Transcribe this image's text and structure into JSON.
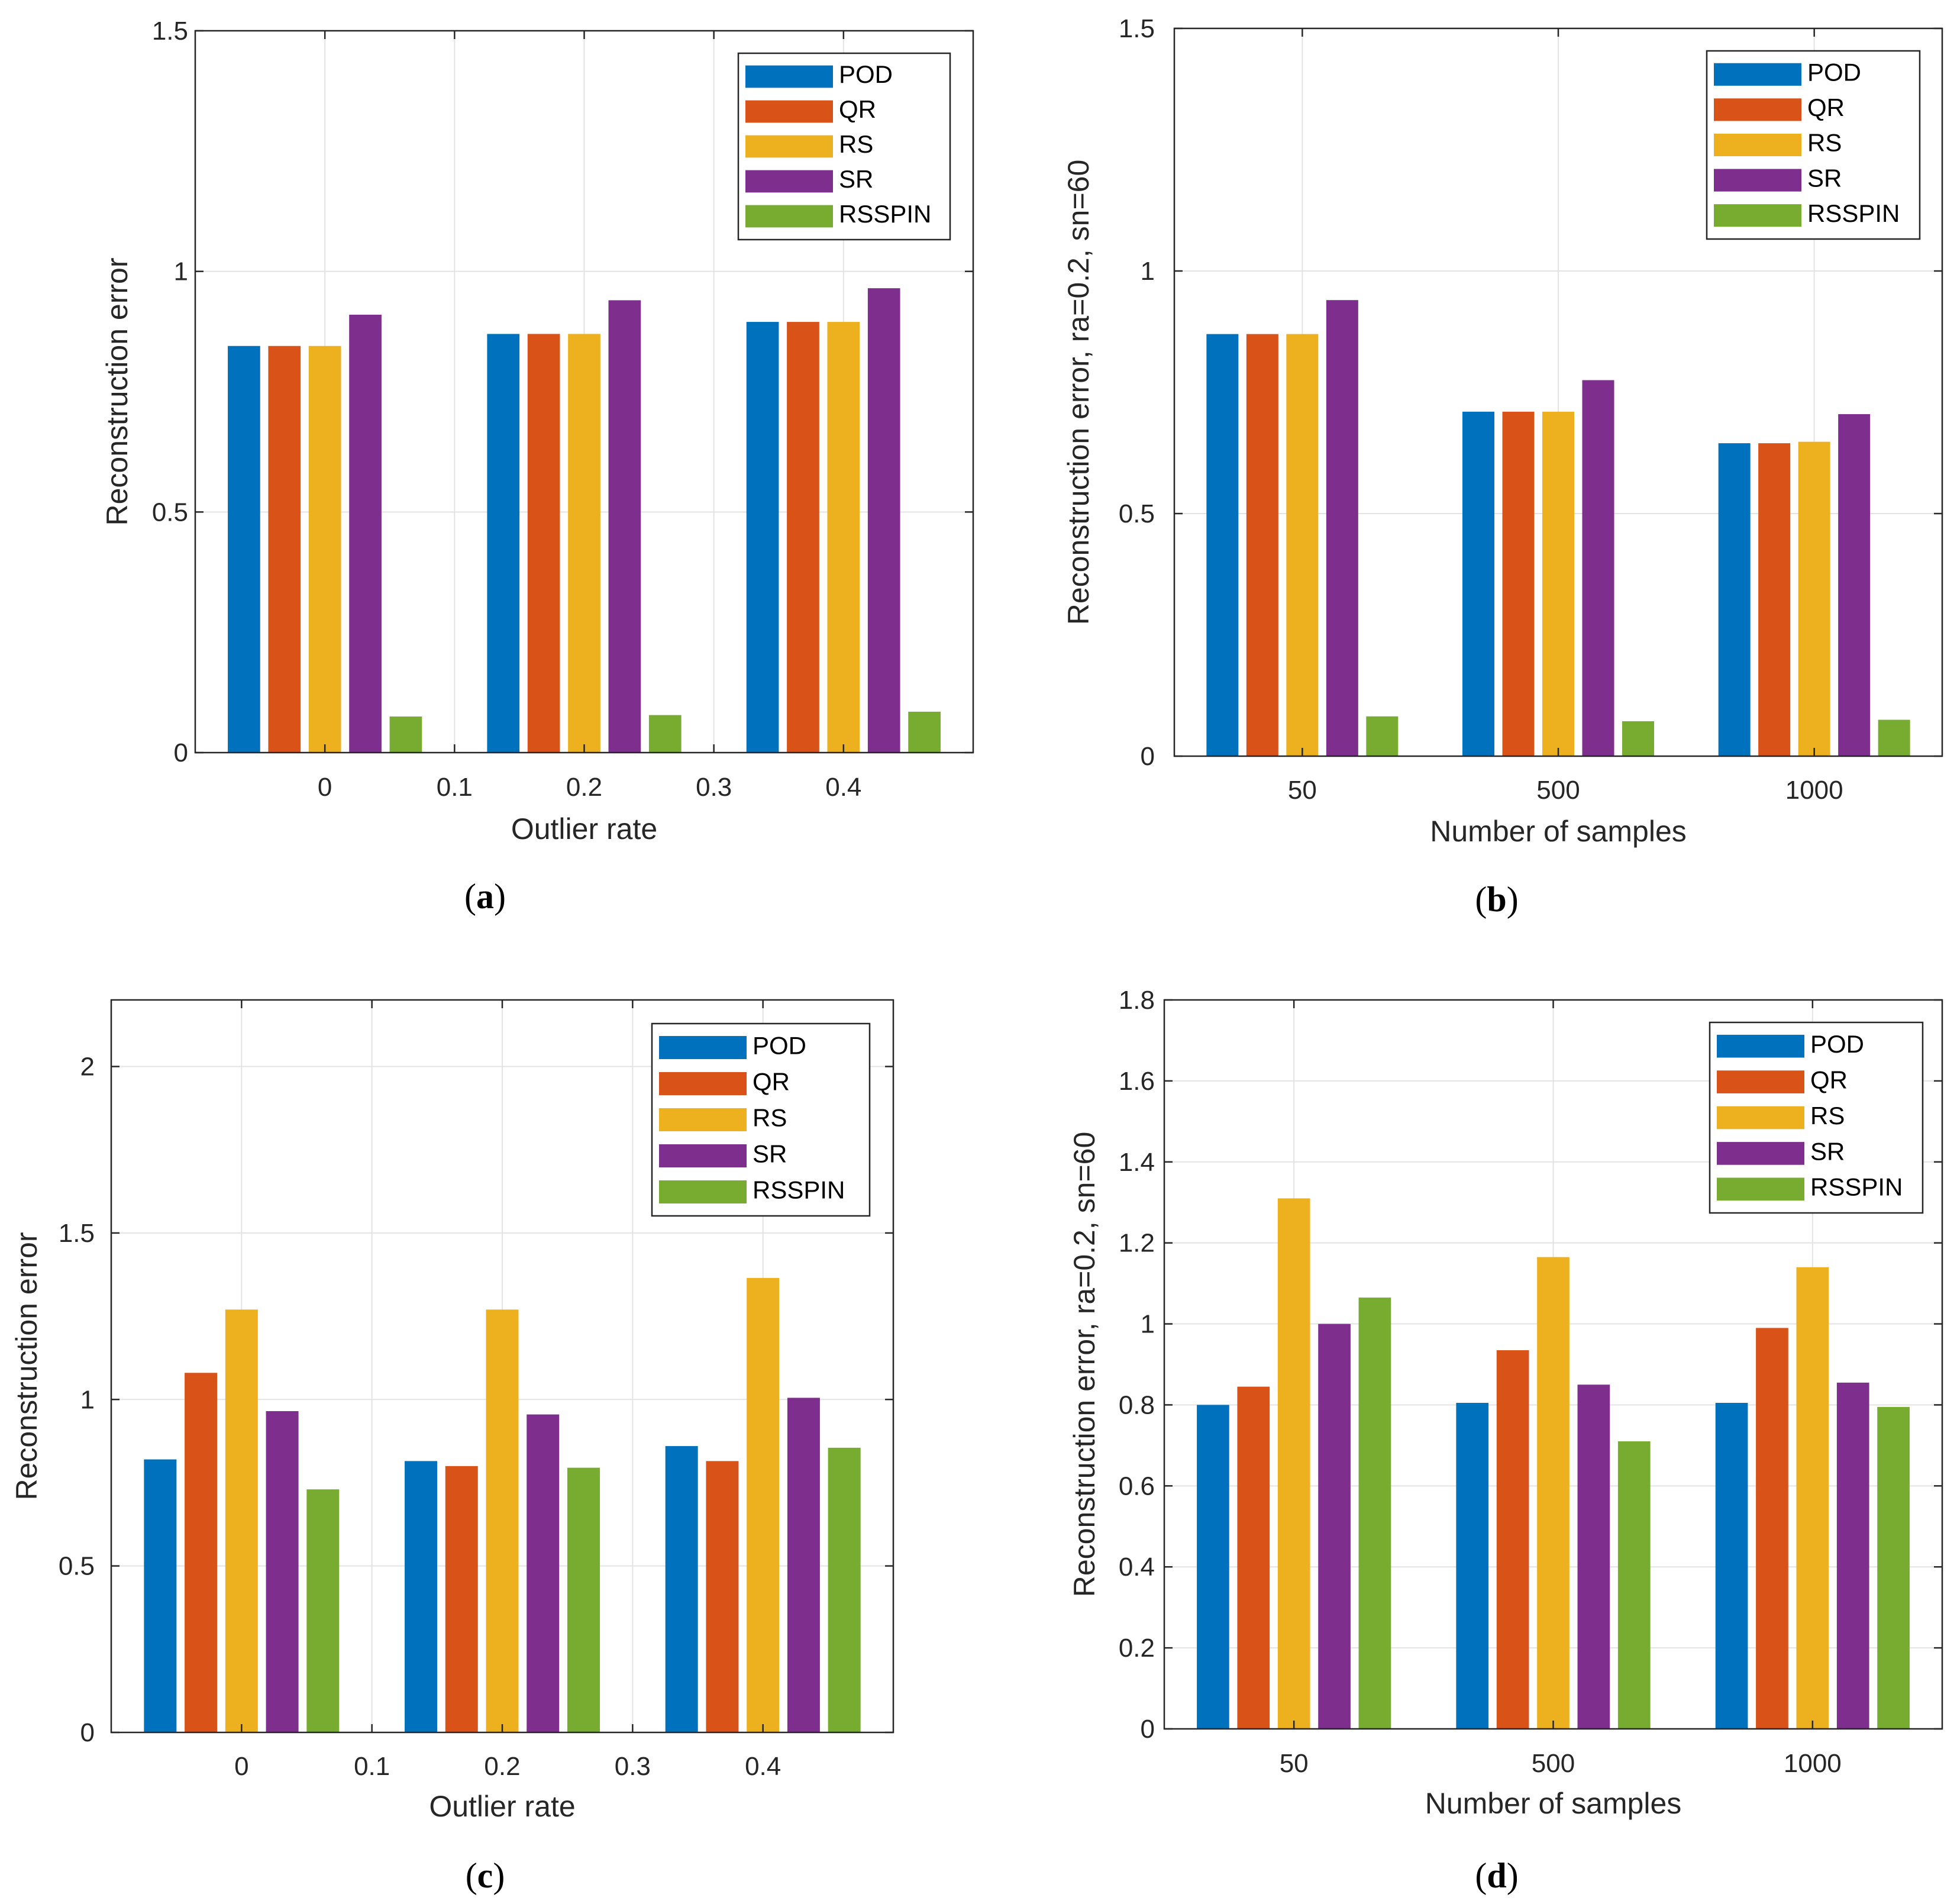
{
  "colors": {
    "POD": "#0072bd",
    "QR": "#d95319",
    "RS": "#edb120",
    "SR": "#7e2f8e",
    "RSSPIN": "#77ac30"
  },
  "chart_data": [
    {
      "type": "bar",
      "panel": "a",
      "caption_letter": "a",
      "xlabel": "Outlier rate",
      "ylabel": "Reconstruction error",
      "xticks": [
        "0",
        "0.1",
        "0.2",
        "0.3",
        "0.4"
      ],
      "categories": [
        "0",
        "0.2",
        "0.4"
      ],
      "ylim": [
        0,
        1.5
      ],
      "yticks": [
        "0",
        "0.5",
        "1",
        "1.5"
      ],
      "ytick_values": [
        0,
        0.5,
        1,
        1.5
      ],
      "grid": true,
      "legend_position": "top-right",
      "series": [
        {
          "name": "POD",
          "values": [
            0.845,
            0.87,
            0.895
          ]
        },
        {
          "name": "QR",
          "values": [
            0.845,
            0.87,
            0.895
          ]
        },
        {
          "name": "RS",
          "values": [
            0.845,
            0.87,
            0.895
          ]
        },
        {
          "name": "SR",
          "values": [
            0.91,
            0.94,
            0.965
          ]
        },
        {
          "name": "RSSPIN",
          "values": [
            0.075,
            0.078,
            0.085
          ]
        }
      ]
    },
    {
      "type": "bar",
      "panel": "b",
      "caption_letter": "b",
      "xlabel": "Number of samples",
      "ylabel": "Reconstruction error, ra=0.2, sn=60",
      "xticks": [
        "50",
        "500",
        "1000"
      ],
      "categories": [
        "50",
        "500",
        "1000"
      ],
      "ylim": [
        0,
        1.5
      ],
      "yticks": [
        "0",
        "0.5",
        "1",
        "1.5"
      ],
      "ytick_values": [
        0,
        0.5,
        1,
        1.5
      ],
      "grid": true,
      "legend_position": "top-right",
      "series": [
        {
          "name": "POD",
          "values": [
            0.87,
            0.71,
            0.645
          ]
        },
        {
          "name": "QR",
          "values": [
            0.87,
            0.71,
            0.645
          ]
        },
        {
          "name": "RS",
          "values": [
            0.87,
            0.71,
            0.648
          ]
        },
        {
          "name": "SR",
          "values": [
            0.94,
            0.775,
            0.705
          ]
        },
        {
          "name": "RSSPIN",
          "values": [
            0.082,
            0.072,
            0.075
          ]
        }
      ]
    },
    {
      "type": "bar",
      "panel": "c",
      "caption_letter": "c",
      "xlabel": "Outlier rate",
      "ylabel": "Reconstruction error",
      "xticks": [
        "0",
        "0.1",
        "0.2",
        "0.3",
        "0.4"
      ],
      "categories": [
        "0",
        "0.2",
        "0.4"
      ],
      "ylim": [
        0,
        2.2
      ],
      "yticks": [
        "0",
        "0.5",
        "1",
        "1.5",
        "2"
      ],
      "ytick_values": [
        0,
        0.5,
        1,
        1.5,
        2
      ],
      "grid": true,
      "legend_position": "top-right",
      "series": [
        {
          "name": "POD",
          "values": [
            0.82,
            0.815,
            0.86
          ]
        },
        {
          "name": "QR",
          "values": [
            1.08,
            0.8,
            0.815
          ]
        },
        {
          "name": "RS",
          "values": [
            1.27,
            1.27,
            1.365
          ]
        },
        {
          "name": "SR",
          "values": [
            0.965,
            0.955,
            1.005
          ]
        },
        {
          "name": "RSSPIN",
          "values": [
            0.73,
            0.795,
            0.855
          ]
        }
      ]
    },
    {
      "type": "bar",
      "panel": "d",
      "caption_letter": "d",
      "xlabel": "Number of samples",
      "ylabel": "Reconstruction error, ra=0.2, sn=60",
      "xticks": [
        "50",
        "500",
        "1000"
      ],
      "categories": [
        "50",
        "500",
        "1000"
      ],
      "ylim": [
        0,
        1.8
      ],
      "yticks": [
        "0",
        "0.2",
        "0.4",
        "0.6",
        "0.8",
        "1",
        "1.2",
        "1.4",
        "1.6",
        "1.8"
      ],
      "ytick_values": [
        0,
        0.2,
        0.4,
        0.6,
        0.8,
        1,
        1.2,
        1.4,
        1.6,
        1.8
      ],
      "grid": true,
      "legend_position": "top-right",
      "series": [
        {
          "name": "POD",
          "values": [
            0.8,
            0.805,
            0.805
          ]
        },
        {
          "name": "QR",
          "values": [
            0.845,
            0.935,
            0.99
          ]
        },
        {
          "name": "RS",
          "values": [
            1.31,
            1.165,
            1.14
          ]
        },
        {
          "name": "SR",
          "values": [
            1.0,
            0.85,
            0.855
          ]
        },
        {
          "name": "RSSPIN",
          "values": [
            1.065,
            0.71,
            0.795
          ]
        }
      ]
    }
  ]
}
